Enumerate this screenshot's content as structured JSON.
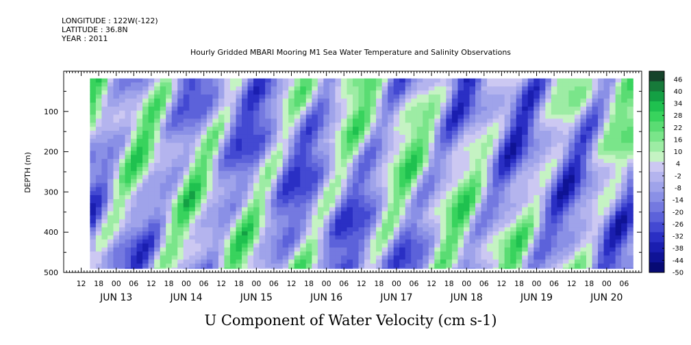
{
  "header": {
    "longitude": "LONGITUDE : 122W(-122)",
    "latitude": "LATITUDE : 36.8N",
    "year": "YEAR : 2011",
    "title": "Hourly Gridded MBARI Mooring M1 Sea Water Temperature and Salinity Observations"
  },
  "chart_data": {
    "type": "heatmap",
    "title": "Hourly Gridded MBARI Mooring M1 Sea Water Temperature and Salinity Observations",
    "xlabel": "U Component of Water Velocity (cm s-1)",
    "ylabel": "DEPTH (m)",
    "x_range": [
      "2011-06-12T06:00",
      "2011-06-20T12:00"
    ],
    "data_x_range": [
      "2011-06-12T15:00",
      "2011-06-20T09:00"
    ],
    "ylim": [
      500,
      0
    ],
    "y_ticks": [
      100,
      200,
      300,
      400,
      500
    ],
    "x_hour_ticks": [
      "12",
      "18",
      "00",
      "06",
      "12",
      "18",
      "00",
      "06",
      "12",
      "18",
      "00",
      "06",
      "12",
      "18",
      "00",
      "06",
      "12",
      "18",
      "00",
      "06",
      "12",
      "18",
      "00",
      "06",
      "12",
      "18",
      "00",
      "06",
      "12",
      "18",
      "00",
      "06"
    ],
    "x_day_labels": [
      "JUN 13",
      "JUN 14",
      "JUN 15",
      "JUN 16",
      "JUN 17",
      "JUN 18",
      "JUN 19",
      "JUN 20"
    ],
    "colorbar": {
      "min": -50,
      "max": 50,
      "labels": [
        46,
        40,
        34,
        28,
        22,
        16,
        10,
        4,
        -2,
        -8,
        -14,
        -20,
        -26,
        -32,
        -38,
        -44,
        -50
      ],
      "colors": [
        "#16432b",
        "#177a3a",
        "#14a044",
        "#1fc14f",
        "#38d35d",
        "#5adc73",
        "#7ae58a",
        "#9deca4",
        "#c5f3c3",
        "#ccc8f2",
        "#b4b4ee",
        "#9fa3ea",
        "#8a90e6",
        "#7479e0",
        "#5c62da",
        "#4349d2",
        "#2a2fc4",
        "#1a1eb0",
        "#0f1396",
        "#070a74"
      ]
    },
    "gridded_field_summary": "U velocity varies roughly between -30 and +30 cm/s; alternating onshore (green, positive) and offshore (blue, negative) bands over depth 20-490 m"
  }
}
